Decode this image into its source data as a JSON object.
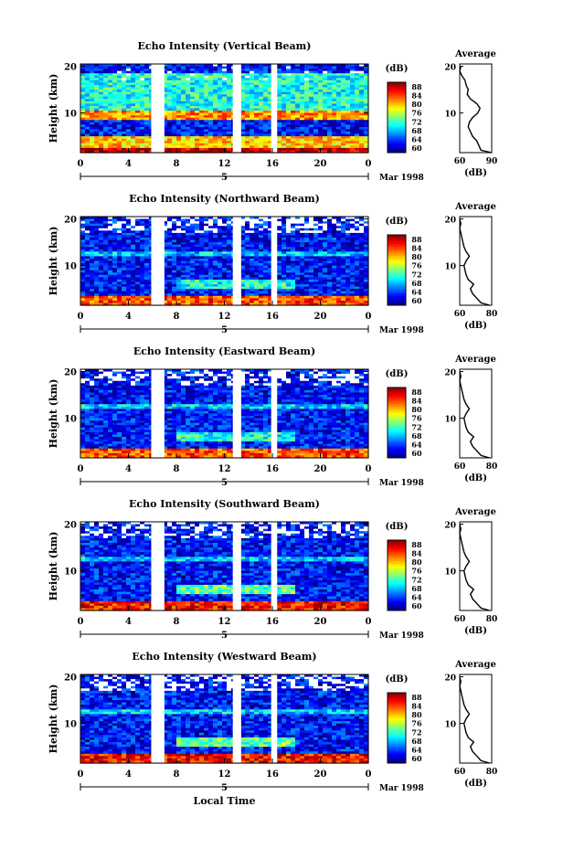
{
  "figure": {
    "xlabel": "Local Time",
    "date_label": "Mar 1998",
    "day_label": "5",
    "height_label": "Height (km)",
    "colorbar_unit": "(dB)",
    "avg_title": "Average",
    "avg_xlabel": "(dB)"
  },
  "chart_data": [
    {
      "type": "heatmap",
      "title": "Echo Intensity (Vertical Beam)",
      "xlabel": "Local Time",
      "ylabel": "Height (km)",
      "x_ticks": [
        "0",
        "4",
        "8",
        "12",
        "16",
        "20",
        "0"
      ],
      "y_ticks": [
        "20",
        "10"
      ],
      "xlim": [
        0,
        24
      ],
      "ylim": [
        1.5,
        20.5
      ],
      "colorbar": {
        "label": "(dB)",
        "ticks": [
          "88",
          "84",
          "80",
          "76",
          "72",
          "68",
          "64",
          "60"
        ],
        "range": [
          60,
          90
        ]
      },
      "data_gaps_hours": [
        [
          5.9,
          7.0
        ],
        [
          12.7,
          13.4
        ],
        [
          15.9,
          16.4
        ]
      ],
      "bands": [
        {
          "height_km": [
            1.5,
            2.5
          ],
          "level_db": 88,
          "hours": [
            0,
            24
          ]
        },
        {
          "height_km": [
            2.5,
            5
          ],
          "level_db": 80,
          "hours": [
            0,
            24
          ]
        },
        {
          "height_km": [
            8.5,
            10.5
          ],
          "level_db": 82,
          "hours": [
            0,
            24
          ]
        },
        {
          "height_km": [
            10.5,
            18.5
          ],
          "level_db": 72,
          "hours": [
            0,
            24
          ]
        }
      ],
      "average_profile": {
        "title": "Average",
        "xlabel": "(dB)",
        "x_ticks": [
          "60",
          "90"
        ],
        "y_ticks": [
          "20",
          "10"
        ],
        "xlim": [
          60,
          90
        ],
        "ylim": [
          1.5,
          20.5
        ],
        "height_km": [
          1.5,
          2,
          3,
          4,
          5,
          6,
          7,
          8,
          9,
          10,
          11,
          12,
          13,
          14,
          15,
          16,
          17,
          18,
          19,
          20
        ],
        "db": [
          90,
          80,
          78,
          76,
          72,
          70,
          68,
          69,
          72,
          77,
          79,
          76,
          70,
          67,
          68,
          66,
          65,
          62,
          60,
          61
        ]
      }
    },
    {
      "type": "heatmap",
      "title": "Echo Intensity (Northward Beam)",
      "xlabel": "Local Time",
      "ylabel": "Height (km)",
      "x_ticks": [
        "0",
        "4",
        "8",
        "12",
        "16",
        "20",
        "0"
      ],
      "y_ticks": [
        "20",
        "10"
      ],
      "xlim": [
        0,
        24
      ],
      "ylim": [
        1.5,
        20.5
      ],
      "colorbar": {
        "label": "(dB)",
        "ticks": [
          "88",
          "84",
          "80",
          "76",
          "72",
          "68",
          "64",
          "60"
        ],
        "range": [
          60,
          90
        ]
      },
      "data_gaps_hours": [
        [
          5.9,
          7.0
        ],
        [
          12.7,
          13.4
        ],
        [
          15.9,
          16.4
        ]
      ],
      "bands": [
        {
          "height_km": [
            1.5,
            3.5
          ],
          "level_db": 84,
          "hours": [
            0,
            24
          ]
        },
        {
          "height_km": [
            5,
            7
          ],
          "level_db": 72,
          "hours": [
            8,
            18
          ]
        },
        {
          "height_km": [
            12,
            13
          ],
          "level_db": 70,
          "hours": [
            0,
            24
          ]
        }
      ],
      "average_profile": {
        "title": "Average",
        "xlabel": "(dB)",
        "x_ticks": [
          "60",
          "80"
        ],
        "y_ticks": [
          "20",
          "10"
        ],
        "xlim": [
          60,
          90
        ],
        "ylim": [
          1.5,
          20.5
        ],
        "height_km": [
          1.5,
          2,
          3,
          4,
          5,
          6,
          7,
          8,
          9,
          10,
          11,
          12,
          13,
          14,
          15,
          16,
          17,
          18,
          19,
          20
        ],
        "db": [
          88,
          80,
          76,
          72,
          70,
          73,
          68,
          66,
          65,
          64,
          66,
          69,
          66,
          64,
          63,
          62,
          61,
          60,
          61,
          60
        ]
      }
    },
    {
      "type": "heatmap",
      "title": "Echo Intensity (Eastward Beam)",
      "xlabel": "Local Time",
      "ylabel": "Height (km)",
      "x_ticks": [
        "0",
        "4",
        "8",
        "12",
        "16",
        "20",
        "0"
      ],
      "y_ticks": [
        "20",
        "10"
      ],
      "xlim": [
        0,
        24
      ],
      "ylim": [
        1.5,
        20.5
      ],
      "colorbar": {
        "label": "(dB)",
        "ticks": [
          "88",
          "84",
          "80",
          "76",
          "72",
          "68",
          "64",
          "60"
        ],
        "range": [
          60,
          90
        ]
      },
      "data_gaps_hours": [
        [
          5.9,
          7.0
        ],
        [
          12.7,
          13.4
        ],
        [
          15.9,
          16.4
        ]
      ],
      "bands": [
        {
          "height_km": [
            1.5,
            3.5
          ],
          "level_db": 84,
          "hours": [
            0,
            24
          ]
        },
        {
          "height_km": [
            5,
            7
          ],
          "level_db": 72,
          "hours": [
            8,
            18
          ]
        },
        {
          "height_km": [
            12,
            13
          ],
          "level_db": 70,
          "hours": [
            0,
            24
          ]
        }
      ],
      "average_profile": {
        "title": "Average",
        "xlabel": "(dB)",
        "x_ticks": [
          "60",
          "80"
        ],
        "y_ticks": [
          "20",
          "10"
        ],
        "xlim": [
          60,
          90
        ],
        "ylim": [
          1.5,
          20.5
        ],
        "height_km": [
          1.5,
          2,
          3,
          4,
          5,
          6,
          7,
          8,
          9,
          10,
          11,
          12,
          13,
          14,
          15,
          16,
          17,
          18,
          19,
          20
        ],
        "db": [
          88,
          80,
          76,
          72,
          70,
          73,
          68,
          66,
          65,
          64,
          66,
          69,
          66,
          64,
          63,
          62,
          61,
          60,
          61,
          60
        ]
      }
    },
    {
      "type": "heatmap",
      "title": "Echo Intensity (Southward Beam)",
      "xlabel": "Local Time",
      "ylabel": "Height (km)",
      "x_ticks": [
        "0",
        "4",
        "8",
        "12",
        "16",
        "20",
        "0"
      ],
      "y_ticks": [
        "20",
        "10"
      ],
      "xlim": [
        0,
        24
      ],
      "ylim": [
        1.5,
        20.5
      ],
      "colorbar": {
        "label": "(dB)",
        "ticks": [
          "88",
          "84",
          "80",
          "76",
          "72",
          "68",
          "64",
          "60"
        ],
        "range": [
          60,
          90
        ]
      },
      "data_gaps_hours": [
        [
          5.9,
          7.0
        ],
        [
          12.7,
          13.4
        ],
        [
          15.9,
          16.4
        ]
      ],
      "bands": [
        {
          "height_km": [
            1.5,
            3.5
          ],
          "level_db": 86,
          "hours": [
            0,
            24
          ]
        },
        {
          "height_km": [
            5,
            7
          ],
          "level_db": 74,
          "hours": [
            8,
            18
          ]
        },
        {
          "height_km": [
            12,
            13
          ],
          "level_db": 70,
          "hours": [
            0,
            24
          ]
        }
      ],
      "average_profile": {
        "title": "Average",
        "xlabel": "(dB)",
        "x_ticks": [
          "60",
          "80"
        ],
        "y_ticks": [
          "20",
          "10"
        ],
        "xlim": [
          60,
          90
        ],
        "ylim": [
          1.5,
          20.5
        ],
        "height_km": [
          1.5,
          2,
          3,
          4,
          5,
          6,
          7,
          8,
          9,
          10,
          11,
          12,
          13,
          14,
          15,
          16,
          17,
          18,
          19,
          20
        ],
        "db": [
          88,
          80,
          76,
          72,
          70,
          73,
          68,
          66,
          65,
          64,
          66,
          69,
          66,
          64,
          63,
          62,
          61,
          60,
          61,
          60
        ]
      }
    },
    {
      "type": "heatmap",
      "title": "Echo Intensity (Westward Beam)",
      "xlabel": "Local Time",
      "ylabel": "Height (km)",
      "x_ticks": [
        "0",
        "4",
        "8",
        "12",
        "16",
        "20",
        "0"
      ],
      "y_ticks": [
        "20",
        "10"
      ],
      "xlim": [
        0,
        24
      ],
      "ylim": [
        1.5,
        20.5
      ],
      "colorbar": {
        "label": "(dB)",
        "ticks": [
          "88",
          "84",
          "80",
          "76",
          "72",
          "68",
          "64",
          "60"
        ],
        "range": [
          60,
          90
        ]
      },
      "data_gaps_hours": [
        [
          5.9,
          7.0
        ],
        [
          12.7,
          13.4
        ],
        [
          15.9,
          16.4
        ]
      ],
      "bands": [
        {
          "height_km": [
            1.5,
            3.5
          ],
          "level_db": 86,
          "hours": [
            0,
            24
          ]
        },
        {
          "height_km": [
            5,
            7
          ],
          "level_db": 74,
          "hours": [
            8,
            18
          ]
        },
        {
          "height_km": [
            12,
            13
          ],
          "level_db": 70,
          "hours": [
            0,
            24
          ]
        }
      ],
      "average_profile": {
        "title": "Average",
        "xlabel": "(dB)",
        "x_ticks": [
          "60",
          "80"
        ],
        "y_ticks": [
          "20",
          "10"
        ],
        "xlim": [
          60,
          90
        ],
        "ylim": [
          1.5,
          20.5
        ],
        "height_km": [
          1.5,
          2,
          3,
          4,
          5,
          6,
          7,
          8,
          9,
          10,
          11,
          12,
          13,
          14,
          15,
          16,
          17,
          18,
          19,
          20
        ],
        "db": [
          88,
          80,
          76,
          72,
          70,
          73,
          68,
          66,
          65,
          64,
          66,
          69,
          66,
          64,
          63,
          62,
          61,
          60,
          61,
          60
        ]
      }
    }
  ]
}
